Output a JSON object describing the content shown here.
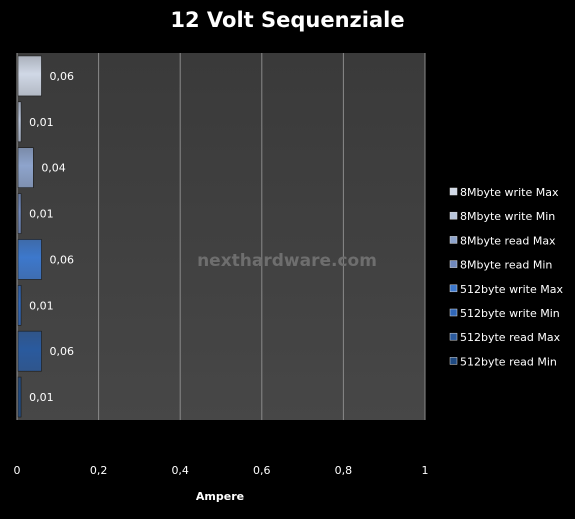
{
  "chart_data": {
    "type": "bar",
    "orientation": "horizontal",
    "title": "12 Volt Sequenziale",
    "xlabel": "Ampere",
    "xlim": [
      0,
      1
    ],
    "xticks": [
      "0",
      "0,2",
      "0,4",
      "0,6",
      "0,8",
      "1"
    ],
    "grid": true,
    "legend_position": "right",
    "watermark": "nexthardware.com",
    "series": [
      {
        "name": "8Mbyte write  Max",
        "value": 0.06,
        "label": "0,06",
        "color": "#d0d8e6"
      },
      {
        "name": "8Mbyte write  Min",
        "value": 0.01,
        "label": "0,01",
        "color": "#b8c4da"
      },
      {
        "name": "8Mbyte read Max",
        "value": 0.04,
        "label": "0,04",
        "color": "#8ea4cc"
      },
      {
        "name": "8Mbyte read Min",
        "value": 0.01,
        "label": "0,01",
        "color": "#7089bd"
      },
      {
        "name": "512byte write Max",
        "value": 0.06,
        "label": "0,06",
        "color": "#3d78cc"
      },
      {
        "name": "512byte write Min",
        "value": 0.01,
        "label": "0,01",
        "color": "#2f66b8"
      },
      {
        "name": "512byte read Max",
        "value": 0.06,
        "label": "0,06",
        "color": "#2a5a9e"
      },
      {
        "name": "512byte read Min",
        "value": 0.01,
        "label": "0,01",
        "color": "#1f4a82"
      }
    ]
  }
}
